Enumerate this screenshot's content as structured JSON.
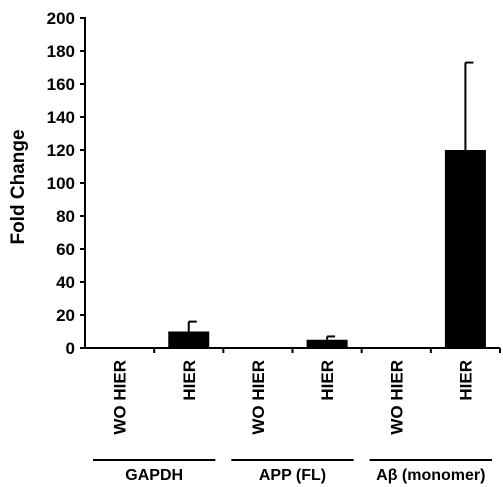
{
  "chart_data": {
    "type": "bar",
    "ylabel": "Fold Change",
    "xlabel": "",
    "ylim": [
      0,
      200
    ],
    "yticks": [
      0,
      20,
      40,
      60,
      80,
      100,
      120,
      140,
      160,
      180,
      200
    ],
    "categories": [
      "WO HIER",
      "HIER",
      "WO HIER",
      "HIER",
      "WO HIER",
      "HIER"
    ],
    "values": [
      0.5,
      10,
      0.5,
      5,
      0.5,
      120
    ],
    "error_bars": [
      0,
      6,
      0,
      2,
      0,
      53
    ],
    "groups": [
      {
        "label": "GAPDH",
        "categories": [
          0,
          1
        ]
      },
      {
        "label": "APP (FL)",
        "categories": [
          2,
          3
        ]
      },
      {
        "label": "Aβ (monomer)",
        "categories": [
          4,
          5
        ]
      }
    ],
    "bar_color": "#000000",
    "grid": false,
    "legend": "none"
  }
}
